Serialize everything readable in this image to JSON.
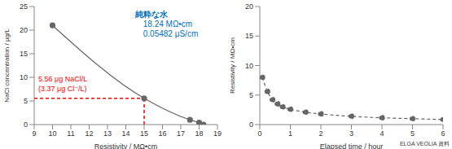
{
  "chart_data": [
    {
      "type": "line",
      "x_label": "Resistivity / MΩ•cm",
      "y_label": "NaCl concentration / μg/L",
      "xlim": [
        9,
        19
      ],
      "xticks": [
        9,
        10,
        11,
        12,
        13,
        14,
        15,
        16,
        17,
        18,
        19
      ],
      "ylim": [
        0,
        25
      ],
      "yticks": [
        0,
        5,
        10,
        15,
        20,
        25
      ],
      "series": [
        {
          "x": [
            10,
            15,
            17.5,
            18,
            18.24
          ],
          "values": [
            21,
            5.56,
            1.0,
            0.4,
            0
          ],
          "color": "#666666",
          "marker": "circle",
          "line_style": "solid"
        }
      ],
      "reference": {
        "x": 15,
        "y": 5.56,
        "color": "#ff0000",
        "line_style": "dashed",
        "texts": [
          "5.56 μg NaCl/L",
          "(3.37 μg Cl⁻/L)"
        ]
      },
      "annotations": {
        "color": "#0070c0",
        "texts": [
          "純粋な水",
          "18.24 MΩ•cm",
          "0.05482 μS/cm"
        ]
      }
    },
    {
      "type": "line",
      "x_label": "Elapsed time / hour",
      "y_label": "Resistivity / MΩ•cm",
      "xlim": [
        0,
        6
      ],
      "xticks": [
        0,
        1,
        2,
        3,
        4,
        5,
        6
      ],
      "ylim": [
        0,
        20
      ],
      "yticks": [
        0,
        5,
        10,
        15,
        20
      ],
      "series": [
        {
          "x": [
            0.083,
            0.25,
            0.417,
            0.583,
            0.75,
            1,
            1.5,
            2,
            3,
            4,
            5,
            6
          ],
          "values": [
            8,
            5.6,
            4.2,
            3.5,
            3.0,
            2.6,
            2.1,
            1.8,
            1.4,
            1.15,
            1.0,
            0.85
          ],
          "color": "#666666",
          "marker": "circle",
          "line_style": "dashed"
        }
      ],
      "source": "ELGA VEOLIA 資料"
    }
  ]
}
